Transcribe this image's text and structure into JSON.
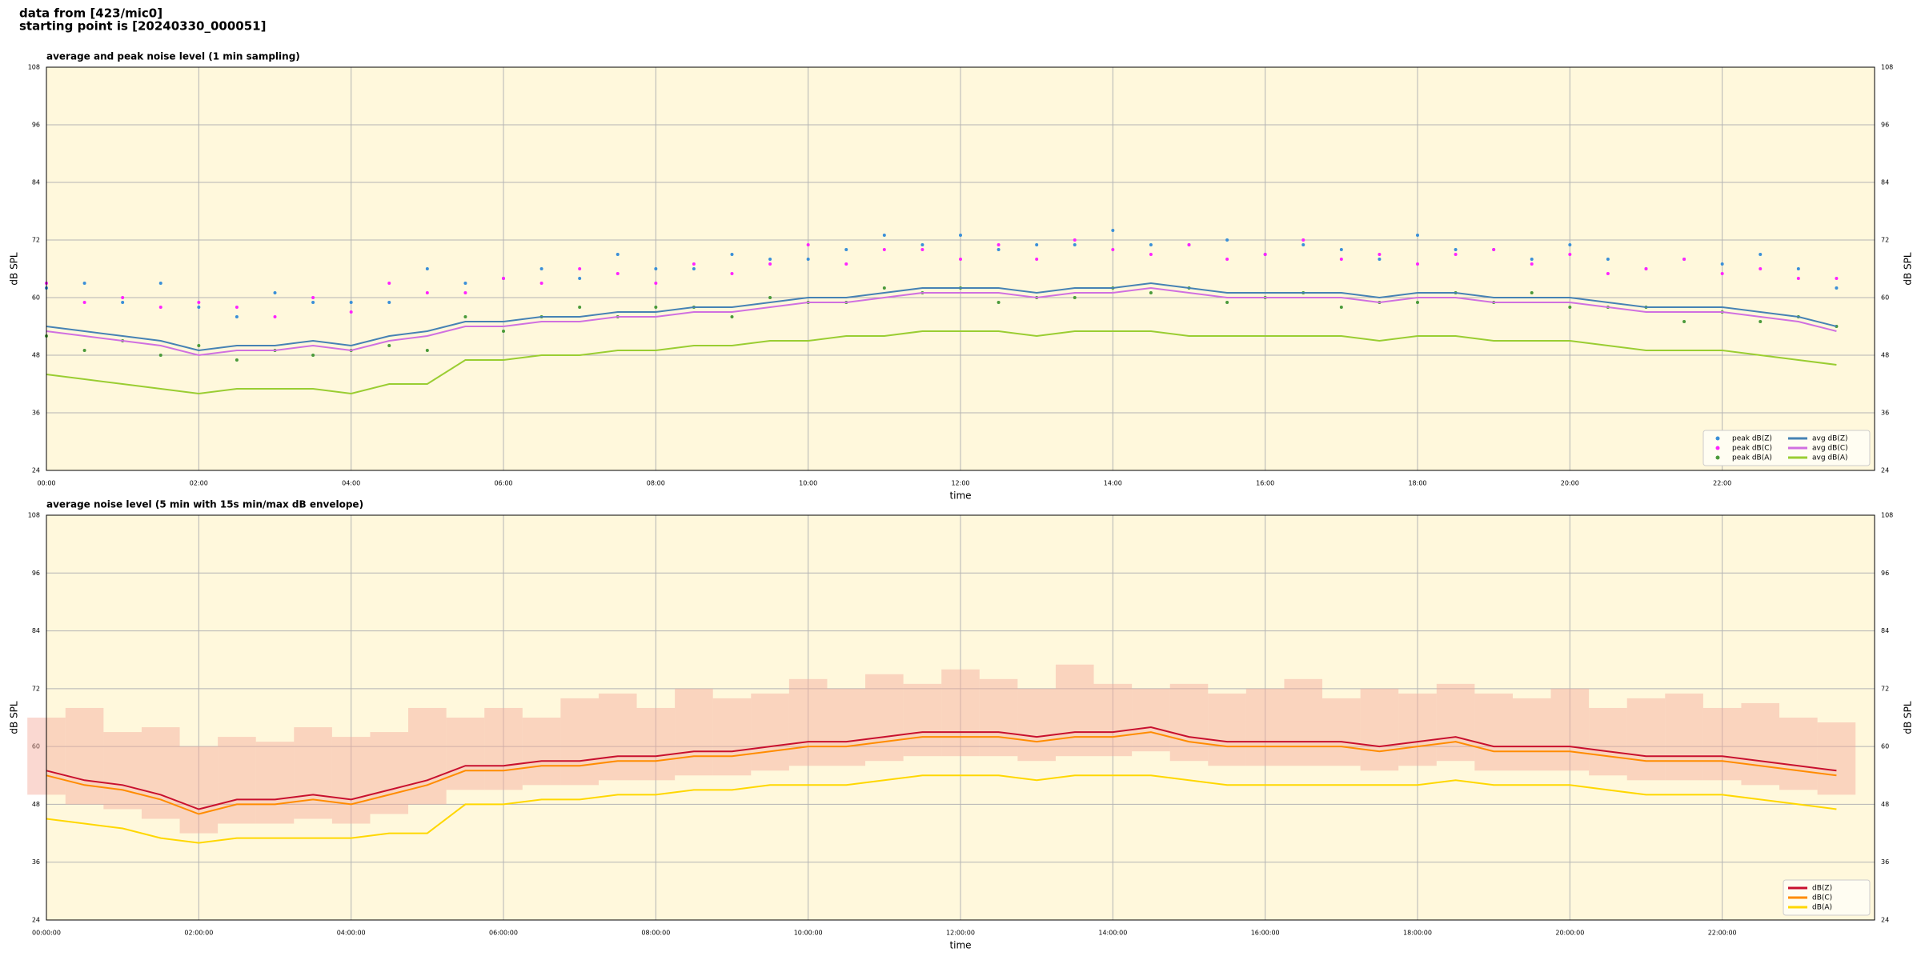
{
  "header": [
    "data from [423/mic0]",
    "starting point is [20240330_000051]"
  ],
  "chart_data": [
    {
      "type": "line",
      "title": "average and peak noise level (1 min sampling)",
      "xlabel": "time",
      "ylabel": "dB SPL",
      "x": [
        0,
        0.5,
        1,
        1.5,
        2,
        2.5,
        3,
        3.5,
        4,
        4.5,
        5,
        5.5,
        6,
        6.5,
        7,
        7.5,
        8,
        8.5,
        9,
        9.5,
        10,
        10.5,
        11,
        11.5,
        12,
        12.5,
        13,
        13.5,
        14,
        14.5,
        15,
        15.5,
        16,
        16.5,
        17,
        17.5,
        18,
        18.5,
        19,
        19.5,
        20,
        20.5,
        21,
        21.5,
        22,
        22.5,
        23,
        23.5
      ],
      "xlim": [
        0,
        24
      ],
      "xticks": [
        {
          "value": 0,
          "label": "00:00"
        },
        {
          "value": 2,
          "label": "02:00"
        },
        {
          "value": 4,
          "label": "04:00"
        },
        {
          "value": 6,
          "label": "06:00"
        },
        {
          "value": 8,
          "label": "08:00"
        },
        {
          "value": 10,
          "label": "10:00"
        },
        {
          "value": 12,
          "label": "12:00"
        },
        {
          "value": 14,
          "label": "14:00"
        },
        {
          "value": 16,
          "label": "16:00"
        },
        {
          "value": 18,
          "label": "18:00"
        },
        {
          "value": 20,
          "label": "20:00"
        },
        {
          "value": 22,
          "label": "22:00"
        }
      ],
      "ylim": [
        24,
        108
      ],
      "yticks": [
        24,
        36,
        48,
        60,
        72,
        84,
        96,
        108
      ],
      "grid": true,
      "legend": "lower right",
      "legend_columns": 2,
      "series": [
        {
          "name": "peak dB(Z)",
          "type": "scatter",
          "color": "#3a8fd8",
          "values": [
            62,
            63,
            59,
            63,
            58,
            56,
            61,
            59,
            59,
            59,
            66,
            63,
            64,
            66,
            64,
            69,
            66,
            66,
            69,
            68,
            68,
            70,
            73,
            71,
            73,
            70,
            71,
            71,
            74,
            71,
            71,
            72,
            69,
            71,
            70,
            68,
            73,
            70,
            70,
            68,
            71,
            68,
            66,
            68,
            67,
            69,
            66,
            62
          ]
        },
        {
          "name": "peak dB(C)",
          "type": "scatter",
          "color": "#ff22ff",
          "values": [
            63,
            59,
            60,
            58,
            59,
            58,
            56,
            60,
            57,
            63,
            61,
            61,
            64,
            63,
            66,
            65,
            63,
            67,
            65,
            67,
            71,
            67,
            70,
            70,
            68,
            71,
            68,
            72,
            70,
            69,
            71,
            68,
            69,
            72,
            68,
            69,
            67,
            69,
            70,
            67,
            69,
            65,
            66,
            68,
            65,
            66,
            64,
            64
          ]
        },
        {
          "name": "peak dB(A)",
          "type": "scatter",
          "color": "#4a9a3a",
          "values": [
            52,
            49,
            51,
            48,
            50,
            47,
            49,
            48,
            49,
            50,
            49,
            56,
            53,
            56,
            58,
            56,
            58,
            58,
            56,
            60,
            59,
            59,
            62,
            61,
            62,
            59,
            60,
            60,
            62,
            61,
            62,
            59,
            60,
            61,
            58,
            59,
            59,
            61,
            59,
            61,
            58,
            58,
            58,
            55,
            57,
            55,
            56,
            54
          ]
        },
        {
          "name": "avg dB(Z)",
          "type": "line",
          "color": "#4682b4",
          "values": [
            54,
            53,
            52,
            51,
            49,
            50,
            50,
            51,
            50,
            52,
            53,
            55,
            55,
            56,
            56,
            57,
            57,
            58,
            58,
            59,
            60,
            60,
            61,
            62,
            62,
            62,
            61,
            62,
            62,
            63,
            62,
            61,
            61,
            61,
            61,
            60,
            61,
            61,
            60,
            60,
            60,
            59,
            58,
            58,
            58,
            57,
            56,
            54
          ]
        },
        {
          "name": "avg dB(C)",
          "type": "line",
          "color": "#d070e0",
          "values": [
            53,
            52,
            51,
            50,
            48,
            49,
            49,
            50,
            49,
            51,
            52,
            54,
            54,
            55,
            55,
            56,
            56,
            57,
            57,
            58,
            59,
            59,
            60,
            61,
            61,
            61,
            60,
            61,
            61,
            62,
            61,
            60,
            60,
            60,
            60,
            59,
            60,
            60,
            59,
            59,
            59,
            58,
            57,
            57,
            57,
            56,
            55,
            53
          ]
        },
        {
          "name": "avg dB(A)",
          "type": "line",
          "color": "#9acd32",
          "values": [
            44,
            43,
            42,
            41,
            40,
            41,
            41,
            41,
            40,
            42,
            42,
            47,
            47,
            48,
            48,
            49,
            49,
            50,
            50,
            51,
            51,
            52,
            52,
            53,
            53,
            53,
            52,
            53,
            53,
            53,
            52,
            52,
            52,
            52,
            52,
            51,
            52,
            52,
            51,
            51,
            51,
            50,
            49,
            49,
            49,
            48,
            47,
            46
          ]
        }
      ]
    },
    {
      "type": "line",
      "title": "average noise level (5 min with 15s min/max dB envelope)",
      "xlabel": "time",
      "ylabel": "dB SPL",
      "x": [
        0,
        0.5,
        1,
        1.5,
        2,
        2.5,
        3,
        3.5,
        4,
        4.5,
        5,
        5.5,
        6,
        6.5,
        7,
        7.5,
        8,
        8.5,
        9,
        9.5,
        10,
        10.5,
        11,
        11.5,
        12,
        12.5,
        13,
        13.5,
        14,
        14.5,
        15,
        15.5,
        16,
        16.5,
        17,
        17.5,
        18,
        18.5,
        19,
        19.5,
        20,
        20.5,
        21,
        21.5,
        22,
        22.5,
        23,
        23.5
      ],
      "xlim": [
        0,
        24
      ],
      "xticks": [
        {
          "value": 0,
          "label": "00:00:00"
        },
        {
          "value": 2,
          "label": "02:00:00"
        },
        {
          "value": 4,
          "label": "04:00:00"
        },
        {
          "value": 6,
          "label": "06:00:00"
        },
        {
          "value": 8,
          "label": "08:00:00"
        },
        {
          "value": 10,
          "label": "10:00:00"
        },
        {
          "value": 12,
          "label": "12:00:00"
        },
        {
          "value": 14,
          "label": "14:00:00"
        },
        {
          "value": 16,
          "label": "16:00:00"
        },
        {
          "value": 18,
          "label": "18:00:00"
        },
        {
          "value": 20,
          "label": "20:00:00"
        },
        {
          "value": 22,
          "label": "22:00:00"
        }
      ],
      "ylim": [
        24,
        108
      ],
      "yticks": [
        24,
        36,
        48,
        60,
        72,
        84,
        96,
        108
      ],
      "grid": true,
      "legend": "lower right",
      "legend_columns": 1,
      "envelope": {
        "color": "#f4a898",
        "min": [
          50,
          48,
          47,
          45,
          42,
          44,
          44,
          45,
          44,
          46,
          48,
          51,
          51,
          52,
          52,
          53,
          53,
          54,
          54,
          55,
          56,
          56,
          57,
          58,
          58,
          58,
          57,
          58,
          58,
          59,
          57,
          56,
          56,
          56,
          56,
          55,
          56,
          57,
          55,
          55,
          55,
          54,
          53,
          53,
          53,
          52,
          51,
          50
        ],
        "max": [
          66,
          68,
          63,
          64,
          60,
          62,
          61,
          64,
          62,
          63,
          68,
          66,
          68,
          66,
          70,
          71,
          68,
          72,
          70,
          71,
          74,
          72,
          75,
          73,
          76,
          74,
          72,
          77,
          73,
          72,
          73,
          71,
          72,
          74,
          70,
          72,
          71,
          73,
          71,
          70,
          72,
          68,
          70,
          71,
          68,
          69,
          66,
          65
        ]
      },
      "series": [
        {
          "name": "dB(Z)",
          "type": "line",
          "color": "#c8102e",
          "values": [
            55,
            53,
            52,
            50,
            47,
            49,
            49,
            50,
            49,
            51,
            53,
            56,
            56,
            57,
            57,
            58,
            58,
            59,
            59,
            60,
            61,
            61,
            62,
            63,
            63,
            63,
            62,
            63,
            63,
            64,
            62,
            61,
            61,
            61,
            61,
            60,
            61,
            62,
            60,
            60,
            60,
            59,
            58,
            58,
            58,
            57,
            56,
            55
          ]
        },
        {
          "name": "dB(C)",
          "type": "line",
          "color": "#ff8c00",
          "values": [
            54,
            52,
            51,
            49,
            46,
            48,
            48,
            49,
            48,
            50,
            52,
            55,
            55,
            56,
            56,
            57,
            57,
            58,
            58,
            59,
            60,
            60,
            61,
            62,
            62,
            62,
            61,
            62,
            62,
            63,
            61,
            60,
            60,
            60,
            60,
            59,
            60,
            61,
            59,
            59,
            59,
            58,
            57,
            57,
            57,
            56,
            55,
            54
          ]
        },
        {
          "name": "dB(A)",
          "type": "line",
          "color": "#ffd700",
          "values": [
            45,
            44,
            43,
            41,
            40,
            41,
            41,
            41,
            41,
            42,
            42,
            48,
            48,
            49,
            49,
            50,
            50,
            51,
            51,
            52,
            52,
            52,
            53,
            54,
            54,
            54,
            53,
            54,
            54,
            54,
            53,
            52,
            52,
            52,
            52,
            52,
            52,
            53,
            52,
            52,
            52,
            51,
            50,
            50,
            50,
            49,
            48,
            47
          ]
        }
      ]
    }
  ]
}
